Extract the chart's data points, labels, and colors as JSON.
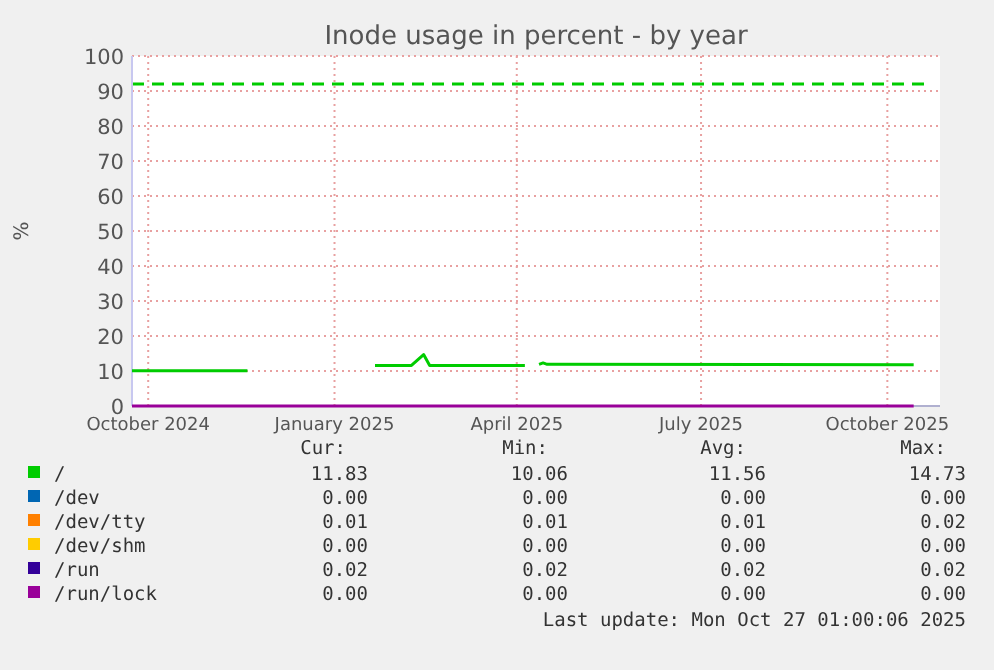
{
  "chart_data": {
    "type": "line",
    "title": "Inode usage in percent - by year",
    "ylabel": "%",
    "xlim": [
      "2024-09-23",
      "2025-10-27"
    ],
    "xticks": [
      {
        "value": "2024-10-01",
        "label": "October 2024"
      },
      {
        "value": "2025-01-01",
        "label": "January 2025"
      },
      {
        "value": "2025-04-01",
        "label": "April 2025"
      },
      {
        "value": "2025-07-01",
        "label": "July 2025"
      },
      {
        "value": "2025-10-01",
        "label": "October 2025"
      }
    ],
    "ylim": [
      0,
      100
    ],
    "yticks": [
      0,
      10,
      20,
      30,
      40,
      50,
      60,
      70,
      80,
      90,
      100
    ],
    "grid": true,
    "legend": "bottom",
    "line_style": "solid",
    "ref_lines": [
      {
        "axis": "y",
        "value": 92,
        "color": "#00cc00",
        "line_style": "dashed"
      }
    ],
    "series": [
      {
        "name": "/",
        "color": "#00cc00",
        "x": [
          "2024-09-23",
          "2024-11-19",
          "2024-12-20",
          "2025-01-21",
          "2025-02-08",
          "2025-02-14",
          "2025-02-17",
          "2025-04-05",
          "2025-04-08",
          "2025-04-12",
          "2025-04-14",
          "2025-04-16",
          "2025-10-14"
        ],
        "values": [
          10.1,
          10.1,
          null,
          11.6,
          11.6,
          14.7,
          11.6,
          11.6,
          null,
          11.9,
          12.3,
          11.9,
          11.8
        ]
      },
      {
        "name": "/dev",
        "color": "#0066b3"
      },
      {
        "name": "/dev/tty",
        "color": "#ff8000"
      },
      {
        "name": "/dev/shm",
        "color": "#ffcc00"
      },
      {
        "name": "/run",
        "color": "#330099"
      },
      {
        "name": "/run/lock",
        "color": "#990099",
        "x": [
          "2024-09-23",
          "2025-10-14"
        ],
        "values": [
          0,
          0
        ]
      }
    ],
    "annotations": [
      "Cur:",
      "Min:",
      "Avg:",
      "Max:",
      "11.83",
      "10.06",
      "11.56",
      "14.73",
      "0.00",
      "0.00",
      "0.00",
      "0.00",
      "0.01",
      "0.01",
      "0.01",
      "0.02",
      "0.00",
      "0.00",
      "0.00",
      "0.00",
      "0.02",
      "0.02",
      "0.02",
      "0.02",
      "0.00",
      "0.00",
      "0.00",
      "0.00",
      "Last update: Mon Oct 27 01:00:06 2025"
    ]
  }
}
